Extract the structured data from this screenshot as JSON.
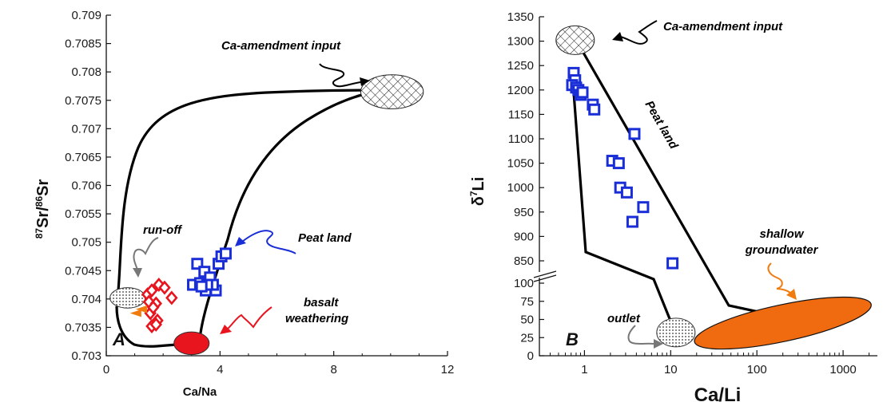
{
  "chart_data": [
    {
      "panel": "A",
      "type": "scatter",
      "xlabel": "Ca/Na",
      "ylabel_parts": {
        "sup1": "87",
        "main1": "Sr/",
        "sup2": "86",
        "main2": "Sr"
      },
      "xlim": [
        0,
        12
      ],
      "ylim": [
        0.703,
        0.709
      ],
      "xticks": [
        0,
        4,
        8,
        12
      ],
      "yticks": [
        "0.703",
        "0.7035",
        "0.704",
        "0.7045",
        "0.705",
        "0.7055",
        "0.706",
        "0.7065",
        "0.707",
        "0.7075",
        "0.708",
        "0.7085",
        "0.709"
      ],
      "series": [
        {
          "marker": "square",
          "color": "#1a2ed8",
          "points": [
            [
              3.05,
              0.70425
            ],
            [
              3.3,
              0.70428
            ],
            [
              3.5,
              0.70415
            ],
            [
              3.85,
              0.70415
            ],
            [
              3.2,
              0.70462
            ],
            [
              3.45,
              0.70448
            ],
            [
              3.65,
              0.70438
            ],
            [
              3.95,
              0.70462
            ],
            [
              4.05,
              0.70475
            ],
            [
              4.2,
              0.7048
            ],
            [
              3.75,
              0.70425
            ],
            [
              3.55,
              0.70425
            ],
            [
              3.35,
              0.70422
            ]
          ]
        },
        {
          "marker": "diamond",
          "color": "#e8141e",
          "points": [
            [
              1.45,
              0.70408
            ],
            [
              1.6,
              0.70415
            ],
            [
              1.85,
              0.70425
            ],
            [
              2.05,
              0.7042
            ],
            [
              1.5,
              0.70395
            ],
            [
              1.75,
              0.70392
            ],
            [
              1.55,
              0.70375
            ],
            [
              1.8,
              0.70362
            ],
            [
              1.6,
              0.70352
            ],
            [
              1.75,
              0.70355
            ],
            [
              2.3,
              0.70402
            ],
            [
              1.65,
              0.70385
            ]
          ]
        },
        {
          "marker": "triangle",
          "color": "#f07c10",
          "points": [
            [
              1.05,
              0.70375
            ],
            [
              1.25,
              0.70382
            ]
          ]
        }
      ],
      "ellipses": [
        {
          "cx": 10.05,
          "cy": 0.70765,
          "rx": 1.1,
          "ry": 0.0003,
          "fill": "hatch"
        },
        {
          "cx": 0.75,
          "cy": 0.70402,
          "rx": 0.62,
          "ry": 0.00018,
          "fill": "dots"
        },
        {
          "cx": 3.0,
          "cy": 0.70322,
          "rx": 0.62,
          "ry": 0.0002,
          "fill": "red"
        }
      ],
      "annotations": [
        {
          "text": "Ca-amendment input",
          "color": "#111111"
        },
        {
          "text": "Peat land",
          "color": "#1a2ed8"
        },
        {
          "text": "run-off",
          "color": "#777777"
        },
        {
          "text": "basalt",
          "color": "#e8141e"
        },
        {
          "text": "weathering",
          "color": "#e8141e"
        }
      ]
    },
    {
      "panel": "B",
      "type": "scatter",
      "xlabel": "Ca/Li",
      "ylabel_parts": {
        "main": "δ",
        "sup": "7",
        "tail": "Li"
      },
      "xscale": "log",
      "xlim": [
        0.3,
        2500
      ],
      "yaxis": "broken",
      "xticks": [
        "1",
        "10",
        "100",
        "1000"
      ],
      "yticks_lower": [
        "0",
        "25",
        "50",
        "75",
        "100"
      ],
      "yticks_upper": [
        "850",
        "900",
        "950",
        "1000",
        "1050",
        "1100",
        "1150",
        "1200",
        "1250",
        "1300",
        "1350"
      ],
      "series": [
        {
          "marker": "square",
          "color": "#1a2ed8",
          "points": [
            [
              0.75,
              1235
            ],
            [
              0.78,
              1220
            ],
            [
              0.72,
              1210
            ],
            [
              0.8,
              1205
            ],
            [
              0.85,
              1200
            ],
            [
              0.9,
              1190
            ],
            [
              0.95,
              1195
            ],
            [
              1.25,
              1170
            ],
            [
              1.3,
              1160
            ],
            [
              2.1,
              1055
            ],
            [
              2.5,
              1050
            ],
            [
              3.8,
              1110
            ],
            [
              2.6,
              1000
            ],
            [
              3.1,
              990
            ],
            [
              4.8,
              960
            ],
            [
              3.6,
              930
            ],
            [
              10.5,
              845
            ]
          ]
        }
      ],
      "ellipses": [
        {
          "cx": 0.78,
          "cy": 1302,
          "fill": "hatch"
        },
        {
          "cx": 11.5,
          "cy": 32,
          "fill": "dots"
        },
        {
          "cx": 200,
          "cy": 45,
          "fill": "orange"
        }
      ],
      "annotations": [
        {
          "text": "Ca-amendment input",
          "color": "#111111"
        },
        {
          "text": "Peat land",
          "color": "#1a2ed8"
        },
        {
          "text": "shallow",
          "color": "#f07c10"
        },
        {
          "text": "groundwater",
          "color": "#f07c10"
        },
        {
          "text": "outlet",
          "color": "#777777"
        }
      ]
    }
  ]
}
